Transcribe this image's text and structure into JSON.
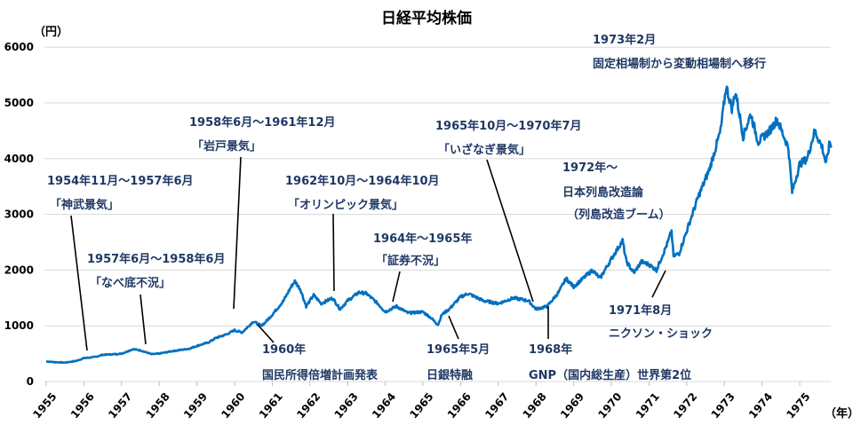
{
  "chart_data": {
    "type": "line",
    "title": "日経平均株価",
    "ylabel": "（円）",
    "xlabel": "（年）",
    "ylim": [
      0,
      6000
    ],
    "yticks": [
      0,
      1000,
      2000,
      3000,
      4000,
      5000,
      6000
    ],
    "xlim": [
      1955,
      1975.85
    ],
    "xticks": [
      "1955",
      "1956",
      "1957",
      "1958",
      "1959",
      "1960",
      "1961",
      "1962",
      "1963",
      "1964",
      "1965",
      "1966",
      "1967",
      "1968",
      "1969",
      "1970",
      "1971",
      "1972",
      "1973",
      "1974",
      "1975"
    ],
    "grid": "horizontal",
    "line_color": "#0070c0",
    "annotation_color": "#1f3864",
    "series": [
      {
        "x": [
          1955.0,
          1955.3,
          1955.5,
          1955.8,
          1956.0,
          1956.3,
          1956.5,
          1956.8,
          1957.0,
          1957.3,
          1957.5,
          1957.8,
          1958.0,
          1958.3,
          1958.5,
          1958.8,
          1959.0,
          1959.3,
          1959.5,
          1959.8,
          1960.0,
          1960.2,
          1960.5,
          1960.7,
          1960.8,
          1961.0,
          1961.3,
          1961.5,
          1961.6,
          1961.75,
          1961.9,
          1962.1,
          1962.3,
          1962.6,
          1962.8,
          1963.0,
          1963.3,
          1963.5,
          1963.8,
          1964.0,
          1964.3,
          1964.6,
          1965.0,
          1965.2,
          1965.4,
          1965.5,
          1965.7,
          1966.0,
          1966.2,
          1966.6,
          1967.0,
          1967.4,
          1967.8,
          1968.0,
          1968.3,
          1968.6,
          1968.8,
          1969.0,
          1969.5,
          1969.7,
          1970.0,
          1970.3,
          1970.4,
          1970.6,
          1970.8,
          1971.0,
          1971.2,
          1971.5,
          1971.6,
          1971.65,
          1971.8,
          1972.0,
          1972.3,
          1972.6,
          1972.9,
          1973.05,
          1973.2,
          1973.3,
          1973.5,
          1973.7,
          1973.9,
          1974.2,
          1974.4,
          1974.7,
          1974.8,
          1975.0,
          1975.2,
          1975.4,
          1975.6,
          1975.7,
          1975.8,
          1975.85
        ],
        "y": [
          360,
          345,
          340,
          370,
          420,
          440,
          480,
          490,
          500,
          580,
          560,
          490,
          500,
          540,
          560,
          590,
          640,
          700,
          780,
          850,
          920,
          880,
          1080,
          1000,
          1050,
          1200,
          1450,
          1700,
          1800,
          1650,
          1350,
          1550,
          1400,
          1500,
          1300,
          1450,
          1600,
          1580,
          1400,
          1250,
          1350,
          1230,
          1250,
          1150,
          1020,
          1200,
          1300,
          1520,
          1580,
          1450,
          1400,
          1500,
          1450,
          1300,
          1350,
          1600,
          1850,
          1700,
          2000,
          1850,
          2200,
          2530,
          2150,
          1950,
          2150,
          2100,
          2000,
          2500,
          2700,
          2250,
          2300,
          2700,
          3300,
          3800,
          4500,
          5300,
          4900,
          5200,
          4400,
          4800,
          4300,
          4500,
          4700,
          4200,
          3400,
          3900,
          4000,
          4500,
          4200,
          3900,
          4300,
          4200
        ]
      }
    ],
    "annotations": [
      {
        "period": "1954年11月～1957年6月",
        "label": "「神武景気」"
      },
      {
        "period": "1957年6月～1958年6月",
        "label": "「なべ底不況」"
      },
      {
        "period": "1958年6月～1961年12月",
        "label": "「岩戸景気」"
      },
      {
        "period": "1960年",
        "label": "国民所得倍増計画発表"
      },
      {
        "period": "1962年10月～1964年10月",
        "label": "「オリンピック景気」"
      },
      {
        "period": "1964年～1965年",
        "label": "「証券不況」"
      },
      {
        "period": "1965年5月",
        "label": "日銀特融"
      },
      {
        "period": "1965年10月～1970年7月",
        "label": "「いざなぎ景気」"
      },
      {
        "period": "1968年",
        "label": "GNP（国内総生産）世界第2位"
      },
      {
        "period": "1971年8月",
        "label": "ニクソン・ショック"
      },
      {
        "period": "1972年～",
        "label": "日本列島改造論",
        "label2": "（列島改造ブーム）"
      },
      {
        "period": "1973年2月",
        "label": "固定相場制から変動相場制へ移行"
      }
    ]
  }
}
